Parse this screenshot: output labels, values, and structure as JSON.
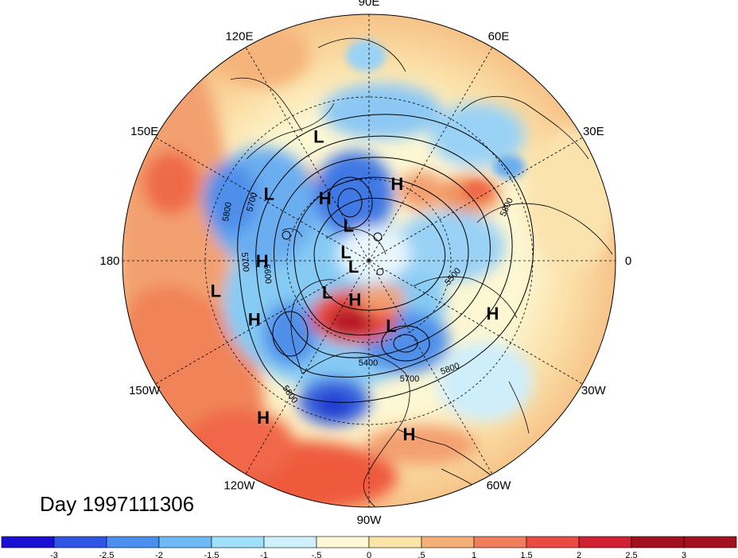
{
  "title": "Day 1997111306",
  "longitude_labels": [
    {
      "text": "90E",
      "lon": 90
    },
    {
      "text": "60E",
      "lon": 60
    },
    {
      "text": "30E",
      "lon": 30
    },
    {
      "text": "0",
      "lon": 0
    },
    {
      "text": "30W",
      "lon": -30
    },
    {
      "text": "60W",
      "lon": -60
    },
    {
      "text": "90W",
      "lon": -90
    },
    {
      "text": "120W",
      "lon": -120
    },
    {
      "text": "150W",
      "lon": -150
    },
    {
      "text": "180",
      "lon": 180
    },
    {
      "text": "150E",
      "lon": 150
    },
    {
      "text": "120E",
      "lon": 120
    }
  ],
  "pressure_centers": [
    {
      "type": "H",
      "lon": 125,
      "lat": 62
    },
    {
      "type": "L",
      "lon": 112,
      "lat": 41
    },
    {
      "type": "L",
      "lon": 146,
      "lat": 46
    },
    {
      "type": "H",
      "lon": 70,
      "lat": 60
    },
    {
      "type": "L",
      "lon": 120,
      "lat": 75
    },
    {
      "type": "L",
      "lon": 159,
      "lat": 81
    },
    {
      "type": "H",
      "lon": 180,
      "lat": 51
    },
    {
      "type": "L",
      "lon": -160,
      "lat": 84
    },
    {
      "type": "L",
      "lon": -143,
      "lat": 71
    },
    {
      "type": "H",
      "lon": -110,
      "lat": 75
    },
    {
      "type": "L",
      "lon": -169,
      "lat": 33
    },
    {
      "type": "H",
      "lon": -153,
      "lat": 43
    },
    {
      "type": "L",
      "lon": -71,
      "lat": 65
    },
    {
      "type": "H",
      "lon": -23,
      "lat": 41
    },
    {
      "type": "H",
      "lon": -77,
      "lat": 25
    },
    {
      "type": "H",
      "lon": -124,
      "lat": 21
    }
  ],
  "contour_labels": [
    "5800",
    "5700",
    "5700",
    "5600",
    "5800",
    "5500",
    "5400",
    "5700",
    "5800",
    "5800"
  ],
  "colorbar": {
    "ticks": [
      "-3",
      "-2.5",
      "-2",
      "-1.5",
      "-1",
      "-.5",
      "0",
      ".5",
      "1",
      "1.5",
      "2",
      "2.5",
      "3"
    ],
    "colors": [
      "#1a0fd4",
      "#2f55e6",
      "#4b8ef0",
      "#6dbaf6",
      "#9fe0fa",
      "#cef1fc",
      "#fdf9d4",
      "#fae5a6",
      "#f5b07a",
      "#f07e5c",
      "#e94b43",
      "#cf2131",
      "#a3101e"
    ]
  }
}
